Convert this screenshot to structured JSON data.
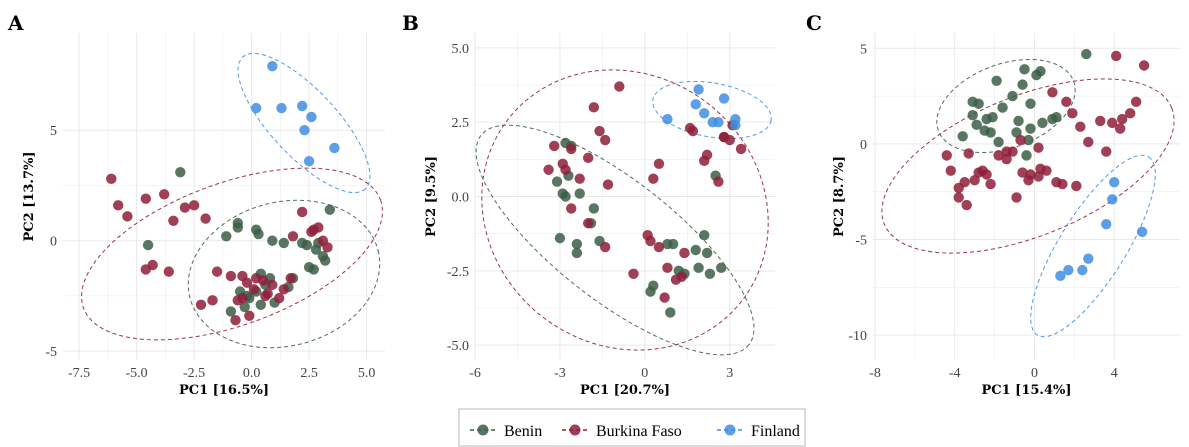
{
  "colors": {
    "Benin": "#3b5e47",
    "Burkina Faso": "#8f1f3a",
    "Finland": "#3f8ee2",
    "grid": "#e9e9e9"
  },
  "legend": {
    "items": [
      "Benin",
      "Burkina Faso",
      "Finland"
    ],
    "placement": "bottom-center"
  },
  "chart_data": [
    {
      "panel": "A",
      "type": "scatter",
      "xlabel": "PC1 [16.5%]",
      "ylabel": "PC2 [13.7%]",
      "xlim": [
        -8.2,
        5.8
      ],
      "ylim": [
        -5.4,
        9.4
      ],
      "xticks": [
        -7.5,
        -5.0,
        -2.5,
        0.0,
        2.5,
        5.0
      ],
      "xtick_labels": [
        "-7.5",
        "-5.0",
        "-2.5",
        "0.0",
        "2.5",
        "5.0"
      ],
      "yticks": [
        -5,
        0,
        5
      ],
      "ytick_labels": [
        "-5",
        "0",
        "5"
      ],
      "grid": true,
      "series": [
        {
          "name": "Benin",
          "x": [
            -3.1,
            -4.5,
            -0.6,
            -1.1,
            0.2,
            0.3,
            0.4,
            -0.6,
            0.9,
            1.4,
            1.8,
            2.4,
            3.1,
            3.2,
            3.4,
            2.8,
            2.7,
            2.5,
            2.2,
            1.6,
            0.8,
            0.6,
            0.2,
            -0.1,
            -0.2,
            -0.5,
            -0.9,
            -0.3,
            0.4,
            1.0,
            2.9
          ],
          "y": [
            3.1,
            -0.2,
            0.6,
            0.2,
            0.5,
            0.3,
            -1.5,
            0.8,
            0.0,
            -0.1,
            -1.7,
            -0.2,
            -0.7,
            -0.9,
            1.4,
            -0.4,
            -1.3,
            -1.2,
            -0.1,
            -2.1,
            -1.7,
            -2.0,
            -2.3,
            -2.6,
            -2.5,
            -2.3,
            -3.2,
            -3.0,
            -2.9,
            -2.8,
            -0.1
          ]
        },
        {
          "name": "Burkina Faso",
          "x": [
            -6.1,
            -5.8,
            -5.4,
            -4.6,
            -4.3,
            -3.8,
            -3.4,
            -2.9,
            -2.5,
            -2.0,
            -2.2,
            -3.6,
            -4.6,
            -1.7,
            -0.9,
            -0.4,
            -0.7,
            -0.1,
            0.2,
            0.5,
            0.6,
            1.2,
            1.7,
            2.2,
            2.9,
            3.1,
            3.3,
            2.6,
            1.8,
            0.9,
            -0.4,
            -0.6,
            0.1,
            1.4,
            0.7,
            2.7,
            -1.5,
            -0.2
          ],
          "y": [
            2.8,
            1.6,
            1.1,
            1.9,
            -1.1,
            2.1,
            0.9,
            1.5,
            1.6,
            1.0,
            -2.9,
            -1.4,
            -1.3,
            -2.7,
            -1.6,
            -1.6,
            -3.6,
            -3.4,
            -1.7,
            -1.8,
            -2.5,
            -2.6,
            -1.7,
            1.3,
            0.6,
            0.0,
            -0.3,
            0.4,
            0.2,
            -2.0,
            -2.6,
            -2.7,
            -2.2,
            -2.2,
            -2.4,
            0.5,
            -1.4,
            -1.9
          ]
        },
        {
          "name": "Finland",
          "x": [
            0.9,
            0.2,
            1.3,
            2.2,
            2.6,
            2.3,
            2.5,
            3.6
          ],
          "y": [
            7.9,
            6.0,
            6.0,
            6.1,
            5.6,
            5.0,
            3.6,
            4.2
          ]
        }
      ]
    },
    {
      "panel": "B",
      "type": "scatter",
      "xlabel": "PC1 [20.7%]",
      "ylabel": "PC2 [9.5%]",
      "xlim": [
        -6.0,
        4.6
      ],
      "ylim": [
        -5.5,
        5.5
      ],
      "xticks": [
        -6,
        -3,
        0,
        3
      ],
      "xtick_labels": [
        "-6",
        "-3",
        "0",
        "3"
      ],
      "yticks": [
        -5.0,
        -2.5,
        0.0,
        2.5,
        5.0
      ],
      "ytick_labels": [
        "-5.0",
        "-2.5",
        "0.0",
        "2.5",
        "5.0"
      ],
      "grid": true,
      "series": [
        {
          "name": "Benin",
          "x": [
            -2.8,
            -2.6,
            -2.7,
            -3.1,
            -2.9,
            -2.8,
            -2.3,
            -1.8,
            -1.9,
            -2.4,
            -2.4,
            -3.0,
            -1.6,
            0.3,
            0.2,
            0.9,
            1.0,
            1.2,
            1.9,
            2.2,
            2.1,
            2.7,
            2.3,
            1.4,
            0.8,
            1.8,
            2.5
          ],
          "y": [
            1.8,
            1.7,
            0.7,
            0.5,
            0.1,
            0.0,
            0.1,
            -0.4,
            -0.9,
            -1.6,
            -1.9,
            -1.4,
            -1.5,
            -3.0,
            -3.2,
            -3.9,
            -1.6,
            -2.5,
            -2.4,
            -1.9,
            -1.3,
            -2.4,
            -2.6,
            -2.6,
            -1.6,
            -1.8,
            0.7
          ]
        },
        {
          "name": "Burkina Faso",
          "x": [
            -3.4,
            -3.2,
            -2.9,
            -2.8,
            -2.6,
            -2.3,
            -2.0,
            -1.6,
            -1.4,
            -1.8,
            -1.3,
            -2.6,
            -2.0,
            -1.4,
            -0.9,
            -0.4,
            0.1,
            0.5,
            0.8,
            1.1,
            1.4,
            1.7,
            2.1,
            2.6,
            2.8,
            3.0,
            3.1,
            3.4,
            2.2,
            0.3,
            0.5,
            1.3,
            0.2,
            0.7,
            1.6,
            2.8
          ],
          "y": [
            0.9,
            1.7,
            1.1,
            0.9,
            1.6,
            0.6,
            1.3,
            2.2,
            1.9,
            3.0,
            0.4,
            -0.4,
            -0.9,
            -1.7,
            3.7,
            -2.6,
            -1.3,
            -1.7,
            -2.4,
            -2.8,
            -1.9,
            2.2,
            1.2,
            0.5,
            2.0,
            1.9,
            2.4,
            1.6,
            1.4,
            0.6,
            1.1,
            -2.7,
            -1.5,
            -3.4,
            2.3,
            2.0
          ]
        },
        {
          "name": "Finland",
          "x": [
            1.9,
            1.8,
            2.1,
            2.6,
            2.8,
            3.2,
            3.2,
            0.8,
            2.4
          ],
          "y": [
            3.6,
            3.1,
            2.8,
            2.5,
            3.3,
            2.6,
            2.4,
            2.6,
            2.5
          ]
        }
      ]
    },
    {
      "panel": "C",
      "type": "scatter",
      "xlabel": "PC1 [15.4%]",
      "ylabel": "PC2 [8.7%]",
      "xlim": [
        -8.1,
        7.3
      ],
      "ylim": [
        -11.3,
        5.8
      ],
      "xticks": [
        -8,
        -4,
        0,
        4
      ],
      "xtick_labels": [
        "-8",
        "-4",
        "0",
        "4"
      ],
      "yticks": [
        -10,
        -5,
        0,
        5
      ],
      "ytick_labels": [
        "-10",
        "-5",
        "0",
        "5"
      ],
      "grid": true,
      "series": [
        {
          "name": "Benin",
          "x": [
            -3.6,
            -3.1,
            -2.8,
            -2.4,
            -2.1,
            -1.9,
            -3.1,
            -2.5,
            -1.6,
            -1.1,
            -0.8,
            -0.5,
            0.1,
            0.3,
            0.4,
            -0.2,
            -0.3,
            -0.9,
            2.6,
            -1.8,
            -2.9,
            1.1,
            -0.4,
            -0.2,
            -2.2,
            0.9,
            -0.6
          ],
          "y": [
            0.4,
            2.2,
            2.1,
            1.3,
            1.4,
            3.3,
            1.5,
            0.7,
            1.9,
            2.5,
            1.2,
            3.9,
            3.6,
            3.8,
            1.1,
            0.8,
            0.2,
            0.6,
            4.7,
            0.1,
            1.0,
            1.4,
            -0.6,
            2.1,
            0.6,
            1.3,
            3.1
          ]
        },
        {
          "name": "Burkina Faso",
          "x": [
            -4.4,
            -4.2,
            -3.8,
            -3.5,
            -3.4,
            -3.0,
            -2.6,
            -2.4,
            -2.2,
            -1.8,
            -1.4,
            -1.1,
            -0.9,
            -0.6,
            -0.3,
            0.2,
            0.6,
            0.9,
            1.1,
            1.6,
            1.9,
            2.3,
            2.7,
            3.3,
            3.6,
            3.9,
            4.1,
            4.3,
            4.8,
            5.1,
            5.5,
            -0.2,
            1.4,
            -3.8,
            -1.4,
            -0.7,
            0.3,
            2.1,
            4.4,
            -2.8,
            0.2,
            -3.3
          ],
          "y": [
            -0.6,
            -1.4,
            -2.3,
            -2.0,
            -3.2,
            -1.9,
            -1.4,
            -1.6,
            -2.1,
            -0.6,
            -0.8,
            -0.4,
            -2.8,
            -1.5,
            -1.9,
            -1.7,
            -1.4,
            2.7,
            -2.0,
            2.2,
            1.6,
            0.9,
            0.1,
            1.2,
            -0.4,
            1.1,
            4.6,
            0.8,
            1.6,
            2.2,
            4.1,
            -1.6,
            -2.1,
            -2.8,
            -0.4,
            0.2,
            -1.3,
            -2.2,
            1.3,
            -1.5,
            -0.2,
            -0.5
          ]
        },
        {
          "name": "Finland",
          "x": [
            4.0,
            3.9,
            3.6,
            5.4,
            1.3,
            1.7,
            2.4,
            2.7
          ],
          "y": [
            -2.0,
            -2.9,
            -4.2,
            -4.6,
            -6.9,
            -6.6,
            -6.6,
            -6.0
          ]
        }
      ]
    }
  ]
}
